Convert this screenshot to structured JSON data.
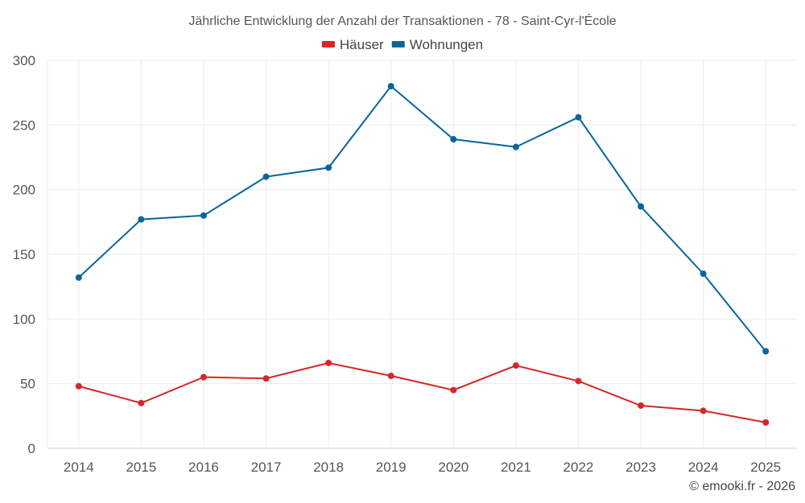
{
  "chart_data": {
    "type": "line",
    "title": "Jährliche Entwicklung der Anzahl der Transaktionen - 78 - Saint-Cyr-l'École",
    "categories": [
      "2014",
      "2015",
      "2016",
      "2017",
      "2018",
      "2019",
      "2020",
      "2021",
      "2022",
      "2023",
      "2024",
      "2025"
    ],
    "series": [
      {
        "name": "Häuser",
        "color": "#d62728",
        "values": [
          48,
          35,
          55,
          54,
          66,
          56,
          45,
          64,
          52,
          33,
          29,
          20
        ]
      },
      {
        "name": "Wohnungen",
        "color": "#08669c",
        "values": [
          132,
          177,
          180,
          210,
          217,
          280,
          239,
          233,
          256,
          187,
          135,
          75
        ]
      }
    ],
    "ylim": [
      0,
      300
    ],
    "yticks": [
      "0",
      "50",
      "100",
      "150",
      "200",
      "250",
      "300"
    ],
    "xlabel": "",
    "ylabel": "",
    "grid": true,
    "legend": "top-center"
  },
  "credit": "© emooki.fr - 2026"
}
